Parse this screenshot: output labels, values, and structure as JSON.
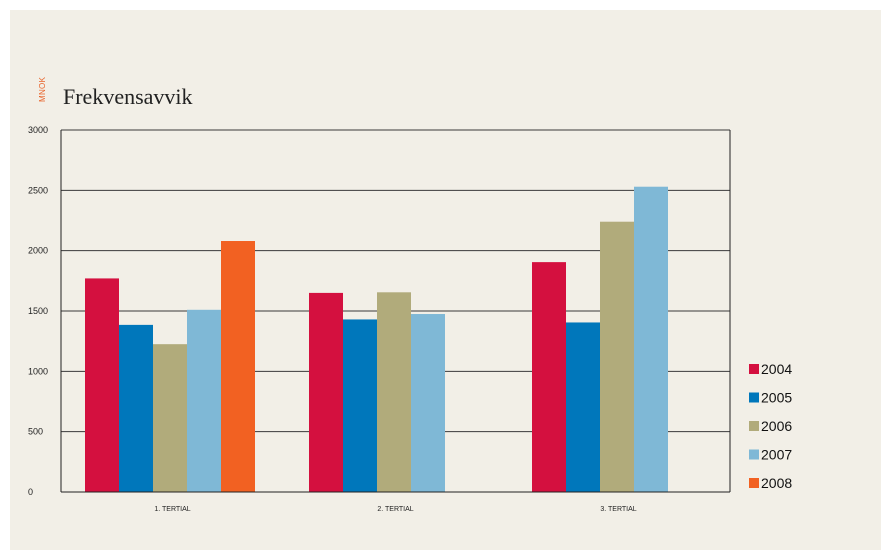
{
  "chart_data": {
    "type": "bar",
    "title": "Frekvensavvik",
    "unit": "MNOK",
    "xlabel": "",
    "ylabel": "",
    "categories": [
      "1. TERTIAL",
      "2. TERTIAL",
      "3. TERTIAL"
    ],
    "ylim": [
      0,
      3000
    ],
    "yticks": [
      0,
      500,
      1000,
      1500,
      2000,
      2500,
      3000
    ],
    "grid": true,
    "legend_position": "right",
    "series": [
      {
        "name": "2004",
        "color": "#d4103f",
        "values": [
          1770,
          1650,
          1905
        ]
      },
      {
        "name": "2005",
        "color": "#0077bb",
        "values": [
          1385,
          1430,
          1405
        ]
      },
      {
        "name": "2006",
        "color": "#b1ab7b",
        "values": [
          1225,
          1655,
          2240
        ]
      },
      {
        "name": "2007",
        "color": "#7fb8d6",
        "values": [
          1510,
          1475,
          2530
        ]
      },
      {
        "name": "2008",
        "color": "#f26122",
        "values": [
          2080,
          null,
          null
        ]
      }
    ]
  }
}
